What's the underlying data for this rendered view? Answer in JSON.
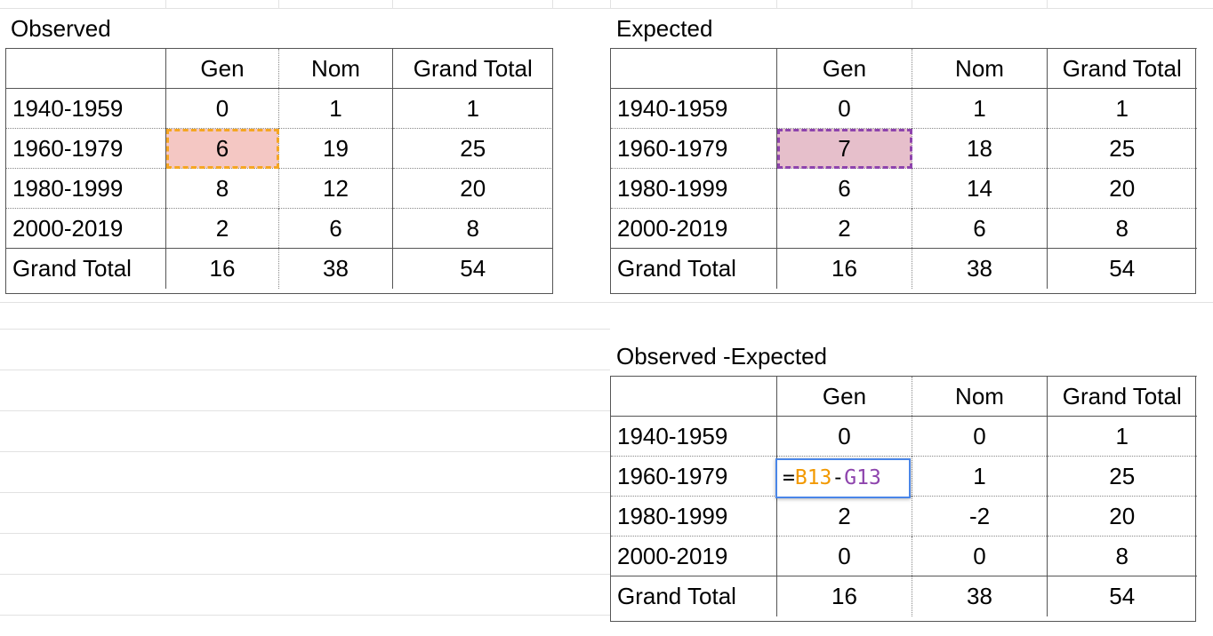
{
  "tables": {
    "observed": {
      "title": "Observed",
      "headers": [
        "",
        "Gen",
        "Nom",
        "Grand Total"
      ],
      "rows": [
        [
          "1940-1959",
          "0",
          "1",
          "1"
        ],
        [
          "1960-1979",
          "6",
          "19",
          "25"
        ],
        [
          "1980-1999",
          "8",
          "12",
          "20"
        ],
        [
          "2000-2019",
          "2",
          "6",
          "8"
        ],
        [
          "Grand Total",
          "16",
          "38",
          "54"
        ]
      ]
    },
    "expected": {
      "title": "Expected",
      "headers": [
        "",
        "Gen",
        "Nom",
        "Grand Total"
      ],
      "rows": [
        [
          "1940-1959",
          "0",
          "1",
          "1"
        ],
        [
          "1960-1979",
          "7",
          "18",
          "25"
        ],
        [
          "1980-1999",
          "6",
          "14",
          "20"
        ],
        [
          "2000-2019",
          "2",
          "6",
          "8"
        ],
        [
          "Grand Total",
          "16",
          "38",
          "54"
        ]
      ]
    },
    "difference": {
      "title": "Observed -Expected",
      "headers": [
        "",
        "Gen",
        "Nom",
        "Grand Total"
      ],
      "rows": [
        [
          "1940-1959",
          "0",
          "0",
          "1"
        ],
        [
          "1960-1979",
          "",
          "1",
          "25"
        ],
        [
          "1980-1999",
          "2",
          "-2",
          "20"
        ],
        [
          "2000-2019",
          "0",
          "0",
          "8"
        ],
        [
          "Grand Total",
          "16",
          "38",
          "54"
        ]
      ]
    }
  },
  "formula": {
    "eq": "=",
    "ref1": "B13",
    "op": "-",
    "ref2": "G13"
  },
  "colors": {
    "ref1": "#f29900",
    "ref2": "#8e44ad",
    "active_cell_border": "#4a86e8"
  }
}
